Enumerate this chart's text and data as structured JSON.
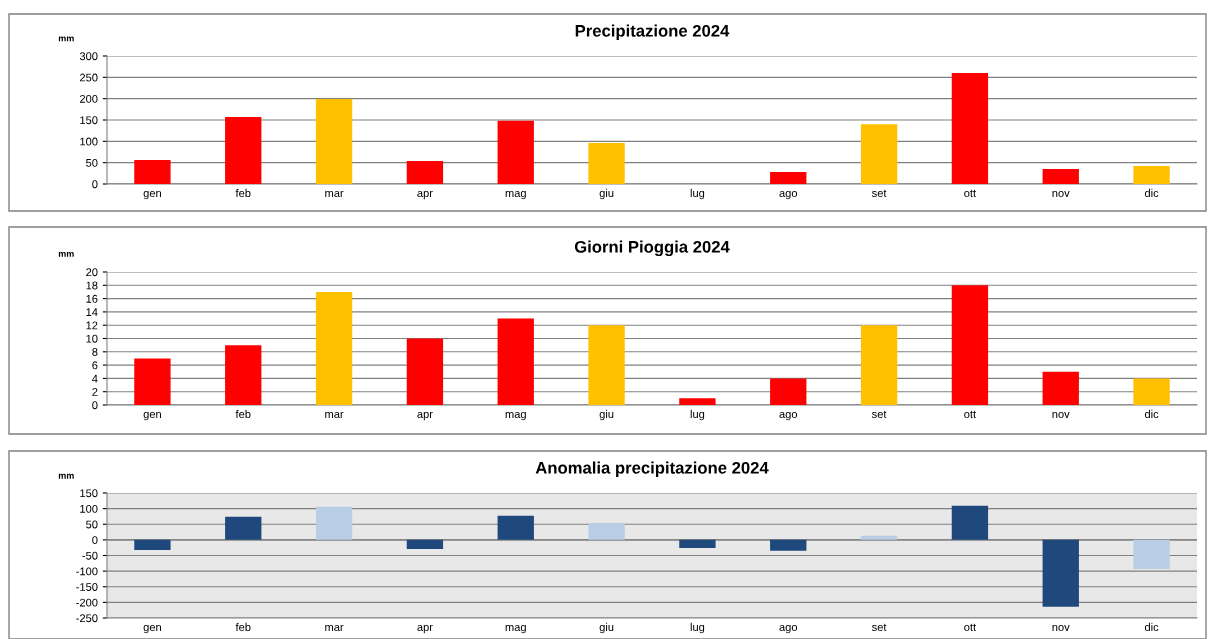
{
  "chart_data": [
    {
      "type": "bar",
      "title": "Precipitazione 2024",
      "ylabel": "mm",
      "categories": [
        "gen",
        "feb",
        "mar",
        "apr",
        "mag",
        "giu",
        "lug",
        "ago",
        "set",
        "ott",
        "nov",
        "dic"
      ],
      "values": [
        56,
        157,
        199,
        54,
        148,
        96,
        null,
        28,
        140,
        260,
        35,
        42
      ],
      "colors": [
        "#ff0000",
        "#ff0000",
        "#ffc000",
        "#ff0000",
        "#ff0000",
        "#ffc000",
        "#ff0000",
        "#ff0000",
        "#ffc000",
        "#ff0000",
        "#ff0000",
        "#ffc000"
      ],
      "ylim": [
        0,
        300
      ],
      "yticks": [
        0,
        50,
        100,
        150,
        200,
        250,
        300
      ],
      "grid": "y"
    },
    {
      "type": "bar",
      "title": "Giorni Pioggia 2024",
      "ylabel": "mm",
      "categories": [
        "gen",
        "feb",
        "mar",
        "apr",
        "mag",
        "giu",
        "lug",
        "ago",
        "set",
        "ott",
        "nov",
        "dic"
      ],
      "values": [
        7,
        9,
        17,
        10,
        13,
        12,
        1,
        4,
        12,
        18,
        5,
        4
      ],
      "colors": [
        "#ff0000",
        "#ff0000",
        "#ffc000",
        "#ff0000",
        "#ff0000",
        "#ffc000",
        "#ff0000",
        "#ff0000",
        "#ffc000",
        "#ff0000",
        "#ff0000",
        "#ffc000"
      ],
      "ylim": [
        0,
        20
      ],
      "yticks": [
        0,
        2,
        4,
        6,
        8,
        10,
        12,
        14,
        16,
        18,
        20
      ],
      "grid": "y"
    },
    {
      "type": "bar",
      "title": "Anomalia precipitazione 2024",
      "ylabel": "mm",
      "categories": [
        "gen",
        "feb",
        "mar",
        "apr",
        "mag",
        "giu",
        "lug",
        "ago",
        "set",
        "ott",
        "nov",
        "dic"
      ],
      "values": [
        -32,
        74,
        106,
        -29,
        77,
        54,
        -26,
        -35,
        13,
        109,
        -214,
        -93
      ],
      "colors": [
        "#1f497d",
        "#1f497d",
        "#b9cde5",
        "#1f497d",
        "#1f497d",
        "#b9cde5",
        "#1f497d",
        "#1f497d",
        "#b9cde5",
        "#1f497d",
        "#1f497d",
        "#b9cde5"
      ],
      "ylim": [
        -250,
        150
      ],
      "yticks": [
        -250,
        -200,
        -150,
        -100,
        -50,
        0,
        50,
        100,
        150
      ],
      "grid": "y"
    }
  ]
}
